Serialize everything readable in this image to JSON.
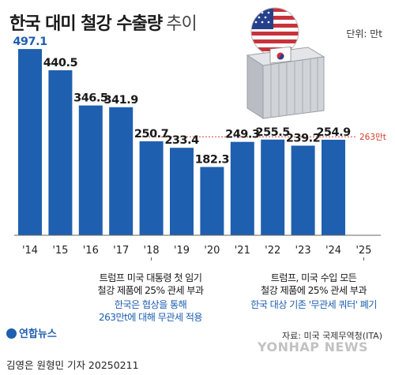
{
  "header": {
    "title_main": "한국 대미 철강 수출량",
    "title_sub": "추이",
    "unit": "단위: 만t"
  },
  "colors": {
    "bar": "#1f5fb0",
    "highlight": "#1f5fb0",
    "reference_line": "#d43d2a"
  },
  "chart_data": {
    "type": "bar",
    "categories": [
      "'14",
      "'15",
      "'16",
      "'17",
      "'18",
      "'19",
      "'20",
      "'21",
      "'22",
      "'23",
      "'24",
      "'25"
    ],
    "values": [
      497.1,
      440.5,
      346.5,
      341.9,
      250.7,
      233.4,
      182.3,
      249.3,
      255.5,
      239.2,
      254.9,
      null
    ],
    "value_labels": [
      "497.1",
      "440.5",
      "346.5",
      "341.9",
      "250.7",
      "233.4",
      "182.3",
      "249.3",
      "255.5",
      "239.2",
      "254.9",
      ""
    ],
    "highlight_index": 0,
    "reference_line": {
      "value": 263,
      "label": "263만t"
    },
    "ylim": [
      0,
      510
    ],
    "grid": false,
    "legend": "none"
  },
  "annotations": {
    "left": {
      "line1": "트럼프 미국 대통령 첫 임기",
      "line2": "철강 제품에 25% 관세 부과",
      "line3": "한국은 협상을 통해",
      "line4": "263만t에 대해 무관세 적용"
    },
    "right": {
      "line1": "트럼프, 미국 수입 모든",
      "line2": "철강 제품에 25% 관세 부과",
      "line3": "한국 대상 기존 '무관세 쿼터' 폐기"
    }
  },
  "footer": {
    "source": "자료: 미국 국제무역청(ITA)",
    "credit": "김영은 원형민 기자  20250211",
    "logo": "연합뉴스",
    "watermark": "YONHAP NEWS"
  }
}
